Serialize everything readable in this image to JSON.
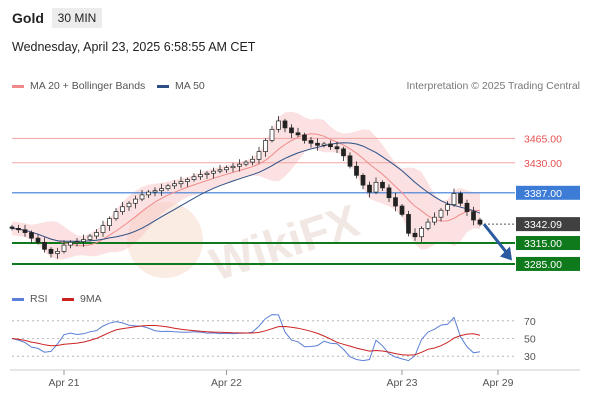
{
  "header": {
    "symbol": "Gold",
    "timeframe": "30 MIN",
    "datetime": "Wednesday, April 23, 2025 6:58:55 AM CET"
  },
  "legend": {
    "items": [
      {
        "label": "MA 20 + Bollinger Bands",
        "color": "#f08a8a"
      },
      {
        "label": "MA 50",
        "color": "#2c4f86"
      }
    ],
    "credit": "Interpretation © 2025 Trading Central"
  },
  "watermark": {
    "text": "WikiFX"
  },
  "chart_data": [
    {
      "type": "line",
      "title": "Gold",
      "xlabel": "",
      "ylabel": "",
      "x_ticks": [
        "Apr 21",
        "Apr 22",
        "Apr 23",
        "Apr 29"
      ],
      "ylim": [
        3262,
        3520
      ],
      "price_series": [
        3336,
        3334,
        3330,
        3322,
        3316,
        3306,
        3300,
        3303,
        3312,
        3316,
        3317,
        3320,
        3325,
        3330,
        3340,
        3350,
        3360,
        3367,
        3372,
        3378,
        3384,
        3388,
        3390,
        3393,
        3397,
        3400,
        3403,
        3406,
        3410,
        3413,
        3415,
        3418,
        3420,
        3423,
        3425,
        3428,
        3431,
        3435,
        3446,
        3462,
        3478,
        3490,
        3480,
        3473,
        3470,
        3462,
        3458,
        3455,
        3457,
        3453,
        3450,
        3440,
        3425,
        3412,
        3398,
        3388,
        3402,
        3394,
        3380,
        3368,
        3356,
        3329,
        3324,
        3336,
        3345,
        3352,
        3362,
        3370,
        3386,
        3372,
        3360,
        3348,
        3342
      ],
      "series": [
        {
          "name": "MA 20 + Bollinger Bands",
          "color": "#f08a8a"
        },
        {
          "name": "MA 50",
          "color": "#2c4f86"
        }
      ],
      "levels": [
        {
          "value": 3465.0,
          "label": "3465.00",
          "style": "resistance",
          "color": "#f3a3a3",
          "label_color": "#e55050"
        },
        {
          "value": 3430.0,
          "label": "3430.00",
          "style": "resistance",
          "color": "#f3a3a3",
          "label_color": "#e55050"
        },
        {
          "value": 3387.0,
          "label": "3387.00",
          "style": "pivot",
          "color": "#3c7cd6",
          "label_bg": "#3c7cd6"
        },
        {
          "value": 3342.09,
          "label": "3342.09",
          "style": "last",
          "color": "#555555",
          "label_bg": "#404040"
        },
        {
          "value": 3315.0,
          "label": "3315.00",
          "style": "support",
          "color": "#0f7a1c",
          "label_bg": "#0f7a1c"
        },
        {
          "value": 3285.0,
          "label": "3285.00",
          "style": "support",
          "color": "#0f7a1c",
          "label_bg": "#0f7a1c"
        }
      ],
      "projection": {
        "from": 3342,
        "to": 3290,
        "color": "#2c5aa0"
      }
    },
    {
      "type": "line",
      "title": "",
      "series": [
        {
          "name": "RSI",
          "color": "#5b7fd6"
        },
        {
          "name": "9MA",
          "color": "#cc2222"
        }
      ],
      "ylim": [
        20,
        80
      ],
      "y_ticks": [
        70,
        50,
        30
      ],
      "guides": [
        70,
        50,
        30
      ]
    }
  ]
}
